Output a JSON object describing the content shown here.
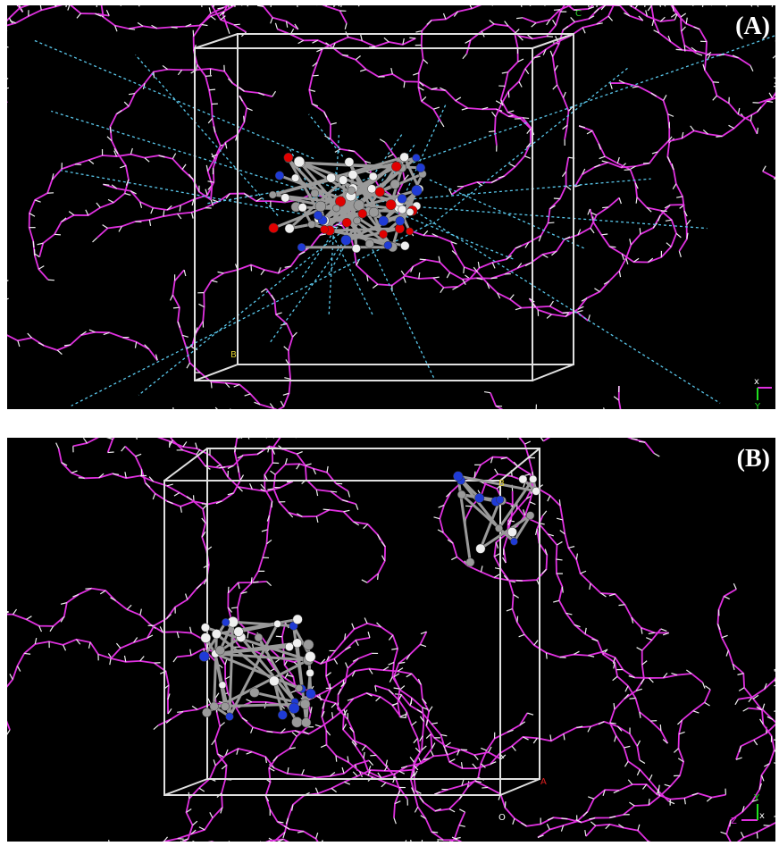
{
  "panels": [
    {
      "label": "(A)",
      "corner_labels": {
        "c": "C",
        "b": "B"
      },
      "axes": {
        "x": "x",
        "y": "Y"
      },
      "colors": {
        "background": "#000000",
        "protein": "#e030e0",
        "hydrogen": "#f0f0f0",
        "box": "#e0e0e0",
        "hbond": "#5ac8ec",
        "carbon": "#9a9a9a",
        "oxygen": "#e00000",
        "nitrogen": "#1f3bd6"
      }
    },
    {
      "label": "(B)",
      "corner_labels": {
        "b": "B",
        "a": "A",
        "o": "O"
      },
      "axes": {
        "z": "Z",
        "y": "Y",
        "x": "x"
      },
      "colors": {
        "background": "#000000",
        "protein": "#e030e0",
        "hydrogen": "#f0f0f0",
        "box": "#e0e0e0",
        "carbon": "#9a9a9a",
        "nitrogen": "#1f3bd6"
      }
    }
  ]
}
